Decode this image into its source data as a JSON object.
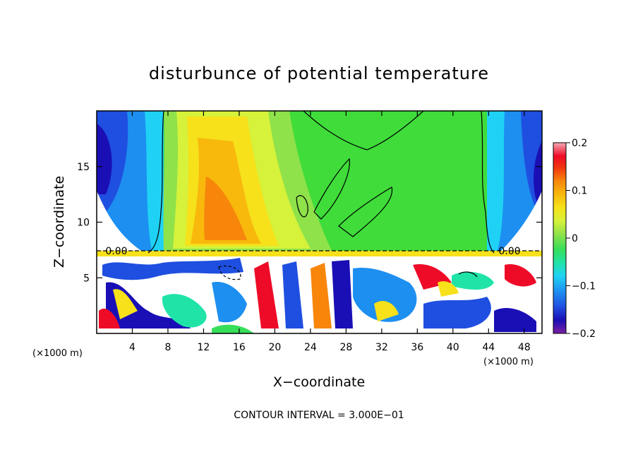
{
  "chart_data": {
    "type": "heatmap",
    "title": "disturbunce of potential temperature",
    "xlabel": "X−coordinate",
    "ylabel": "Z−coordinate",
    "x_unit_left": "(×1000 m)",
    "x_unit_right": "(×1000 m)",
    "x_ticks": [
      "4",
      "8",
      "12",
      "16",
      "20",
      "24",
      "28",
      "32",
      "36",
      "40",
      "44",
      "48"
    ],
    "y_ticks": [
      "5",
      "10",
      "15"
    ],
    "xlim": [
      0,
      50
    ],
    "ylim": [
      0,
      20
    ],
    "colorbar_ticks": [
      "0.2",
      "0.1",
      "0",
      "−0.1",
      "−0.2"
    ],
    "colorbar_range": [
      -0.2,
      0.2
    ],
    "contour_note": "CONTOUR INTERVAL = 3.000E−01",
    "contour_zero_label": "0.00",
    "colormap": [
      "#7b1fa2",
      "#1a0fb5",
      "#1f4fe0",
      "#1d8ff0",
      "#1fd2f5",
      "#20e3a8",
      "#37de5a",
      "#8fe24a",
      "#d6f23a",
      "#f6e11a",
      "#f8b80c",
      "#f7860b",
      "#f2330f",
      "#ee0b28",
      "#f3607c",
      "#f6aab3"
    ]
  }
}
